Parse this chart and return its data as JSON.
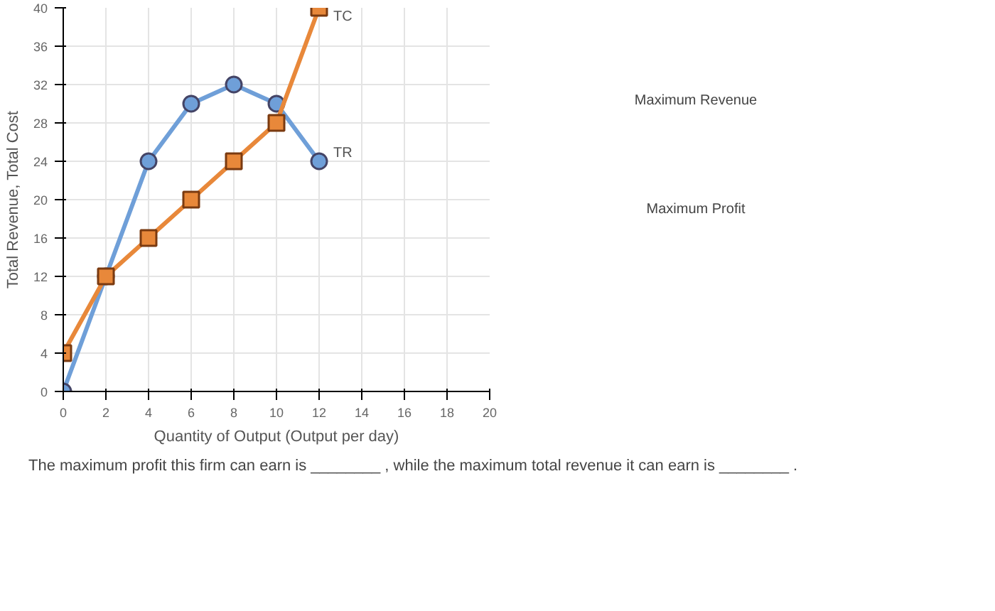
{
  "chart_data": {
    "type": "line",
    "xlabel": "Quantity of Output (Output per day)",
    "ylabel": "Total Revenue, Total Cost",
    "x": [
      0,
      2,
      4,
      6,
      8,
      10,
      12
    ],
    "series": [
      {
        "name": "TR",
        "color": "#6f9fd8",
        "marker": "circle",
        "values": [
          0,
          12,
          24,
          30,
          32,
          30,
          24
        ]
      },
      {
        "name": "TC",
        "color": "#e8883a",
        "marker": "square",
        "values": [
          4,
          12,
          16,
          20,
          24,
          28,
          40
        ]
      }
    ],
    "xlim": [
      0,
      20
    ],
    "ylim": [
      0,
      40
    ],
    "xticks": [
      0,
      2,
      4,
      6,
      8,
      10,
      12,
      14,
      16,
      18,
      20
    ],
    "yticks": [
      0,
      4,
      8,
      12,
      16,
      20,
      24,
      28,
      32,
      36,
      40
    ],
    "grid": true,
    "line_style": "solid",
    "annotations": [
      "Maximum Revenue",
      "Maximum Profit",
      "The maximum profit this firm can earn is ________ , while the maximum total revenue it can earn is ________ ."
    ]
  }
}
